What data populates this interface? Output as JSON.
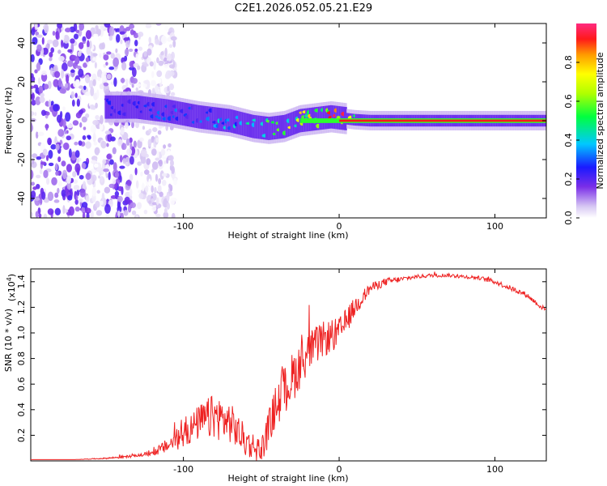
{
  "title": "C2E1.2026.052.05.21.E29",
  "colorbar": {
    "label": "Normalized spectral amplitude",
    "ticks": [
      "0.0",
      "0.2",
      "0.4",
      "0.6",
      "0.8"
    ],
    "tick_values": [
      0,
      0.2,
      0.4,
      0.6,
      0.8
    ],
    "range": [
      0,
      1
    ]
  },
  "chart_data": [
    {
      "type": "heatmap",
      "title": "C2E1.2026.052.05.21.E29",
      "xlabel": "Height of straight line (km)",
      "ylabel": "Frequency (Hz)",
      "xlim": [
        -198,
        133
      ],
      "ylim": [
        -50,
        50
      ],
      "xticks": [
        -100,
        0,
        100
      ],
      "xtick_labels": [
        "-100",
        "0",
        "100"
      ],
      "yticks": [
        -40,
        -20,
        0,
        20,
        40
      ],
      "ytick_labels": [
        "-40",
        "-20",
        "0",
        "20",
        "40"
      ],
      "ridge": {
        "x": [
          -150,
          -130,
          -110,
          -90,
          -70,
          -55,
          -45,
          -35,
          -25,
          -15,
          -5,
          0,
          10,
          20,
          60,
          100,
          133
        ],
        "freq": [
          7,
          7,
          5,
          2,
          0,
          -3,
          -4,
          -3,
          0,
          1,
          2,
          1.5,
          0.5,
          0,
          0,
          0,
          0
        ],
        "amplitude": [
          0.25,
          0.3,
          0.3,
          0.35,
          0.4,
          0.5,
          0.6,
          0.75,
          0.85,
          0.9,
          0.95,
          0.95,
          0.95,
          0.95,
          0.95,
          0.95,
          0.95
        ]
      },
      "noise_region_x": [
        -198,
        -130
      ]
    },
    {
      "type": "line",
      "xlabel": "Height of straight line (km)",
      "ylabel": "SNR (10 * v/v)",
      "y_multiplier_label": "(x10",
      "y_multiplier_exp": "4",
      "y_multiplier_close": ")",
      "xlim": [
        -198,
        133
      ],
      "ylim": [
        0,
        1.5
      ],
      "xticks": [
        -100,
        0,
        100
      ],
      "xtick_labels": [
        "-100",
        "0",
        "100"
      ],
      "yticks": [
        0.2,
        0.4,
        0.6,
        0.8,
        1.0,
        1.2,
        1.4
      ],
      "ytick_labels": [
        "0.2",
        "0.4",
        "0.6",
        "0.8",
        "1.0",
        "1.2",
        "1.4"
      ],
      "color": "#ee2222",
      "series": [
        {
          "name": "SNR",
          "x": [
            -198,
            -170,
            -150,
            -140,
            -130,
            -120,
            -110,
            -100,
            -90,
            -80,
            -70,
            -60,
            -50,
            -40,
            -30,
            -20,
            -10,
            0,
            10,
            20,
            30,
            40,
            50,
            60,
            70,
            80,
            90,
            100,
            110,
            120,
            130,
            133
          ],
          "values": [
            0.01,
            0.01,
            0.02,
            0.03,
            0.04,
            0.06,
            0.12,
            0.2,
            0.3,
            0.35,
            0.3,
            0.15,
            0.08,
            0.45,
            0.65,
            0.85,
            0.95,
            1.0,
            1.2,
            1.35,
            1.4,
            1.42,
            1.44,
            1.45,
            1.45,
            1.44,
            1.43,
            1.4,
            1.35,
            1.3,
            1.2,
            1.18
          ],
          "noise": [
            0,
            0,
            0.005,
            0.01,
            0.01,
            0.02,
            0.06,
            0.1,
            0.14,
            0.18,
            0.16,
            0.12,
            0.1,
            0.18,
            0.2,
            0.16,
            0.14,
            0.12,
            0.08,
            0.04,
            0.03,
            0.02,
            0.015,
            0.015,
            0.015,
            0.015,
            0.015,
            0.02,
            0.02,
            0.02,
            0.02,
            0.02
          ]
        }
      ]
    }
  ]
}
